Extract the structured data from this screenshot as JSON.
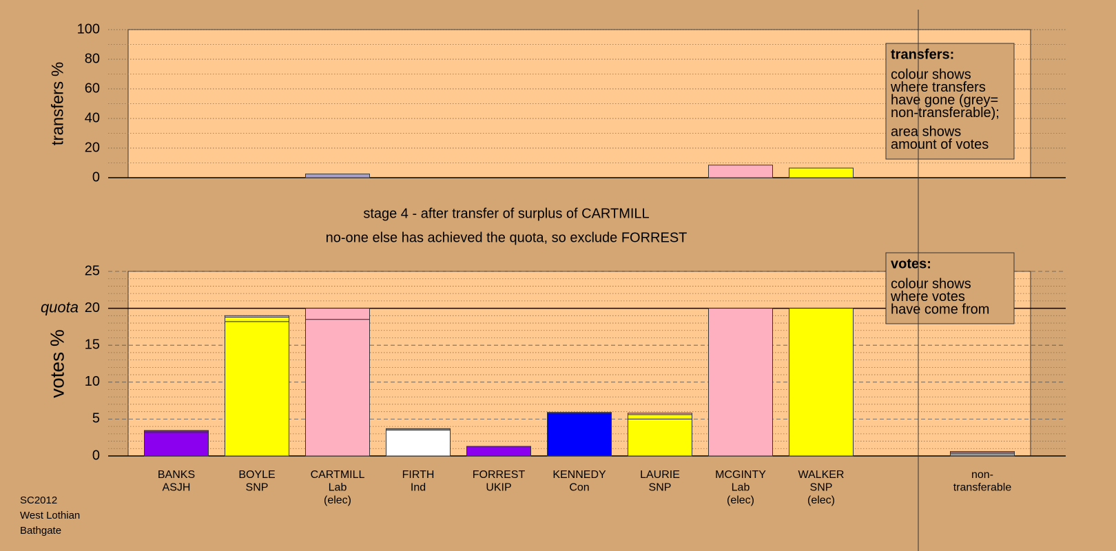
{
  "chart_data": [
    {
      "type": "bar",
      "ylabel": "transfers %",
      "ylim": [
        0,
        100
      ],
      "yticks": [
        0,
        20,
        40,
        60,
        80,
        100
      ],
      "grid": true,
      "series": [
        {
          "colors": [
            "#999999",
            "#999999",
            "#a8a0c8",
            "#999999",
            "#999999",
            "#999999",
            "#999999",
            "#ffb0c0",
            "#ffff00",
            "#999999"
          ],
          "values": [
            0,
            0,
            2.5,
            0,
            0,
            0,
            0,
            8.5,
            6.5,
            0
          ]
        }
      ],
      "legend": {
        "title": "transfers:",
        "paragraphs": [
          [
            "colour shows",
            "where transfers",
            "have gone (grey=",
            "non-transferable);"
          ],
          [
            "area shows",
            "amount of votes"
          ]
        ]
      }
    },
    {
      "type": "bar",
      "ylabel": "votes %",
      "ylim": [
        0,
        25
      ],
      "yticks": [
        0,
        5,
        10,
        15,
        20,
        25
      ],
      "grid": true,
      "quota": {
        "label": "quota",
        "value": 20
      },
      "categories": [
        [
          "BANKS",
          "ASJH"
        ],
        [
          "BOYLE",
          "SNP"
        ],
        [
          "CARTMILL",
          "Lab",
          "(elec)"
        ],
        [
          "FIRTH",
          "Ind"
        ],
        [
          "FORREST",
          "UKIP"
        ],
        [
          "KENNEDY",
          "Con"
        ],
        [
          "LAURIE",
          "SNP"
        ],
        [
          "MCGINTY",
          "Lab",
          "(elec)"
        ],
        [
          "WALKER",
          "SNP",
          "(elec)"
        ],
        null,
        [
          "non-",
          "transferable"
        ]
      ],
      "series": [
        {
          "colors": [
            "#8b00ee",
            "#ffff00",
            "#ffb0c0",
            "#ffffff",
            "#8b00ee",
            "#0000ff",
            "#ffff00",
            "#ffb0c0",
            "#ffff00",
            null,
            "#999999"
          ],
          "values": [
            3.2,
            18.2,
            18.5,
            3.5,
            1.3,
            5.8,
            5.0,
            20,
            20,
            null,
            0.4
          ]
        },
        {
          "colors": [
            "#6a2a8a",
            "#ffff00",
            "#ffb0c0",
            "#b08060",
            "#8b00ee",
            "#3030a0",
            "#ffff00",
            "#ffb0c0",
            "#ffff00",
            null,
            "#c09090"
          ],
          "values": [
            0.25,
            0.6,
            1.5,
            0.2,
            0,
            0.1,
            0.6,
            0,
            0,
            null,
            0.2
          ]
        },
        {
          "colors": [
            "#ffb0c0",
            "#ffb0c0",
            "#ffb0c0",
            "#ffb0c0",
            "#ffb0c0",
            "#ffb0c0",
            "#ffb0c0",
            "#ffb0c0",
            "#ffb0c0",
            null,
            "#ffb0c0"
          ],
          "values": [
            0,
            0.2,
            0,
            0,
            0,
            0,
            0.2,
            0,
            0,
            null,
            0
          ]
        }
      ],
      "legend": {
        "title": "votes:",
        "paragraphs": [
          [
            "colour shows",
            "where votes",
            "have come from"
          ]
        ]
      }
    }
  ],
  "stage": [
    "stage 4 - after transfer of surplus of CARTMILL",
    "no-one else has achieved the quota, so exclude FORREST"
  ],
  "footer": [
    "SC2012",
    "West Lothian",
    "Bathgate"
  ]
}
